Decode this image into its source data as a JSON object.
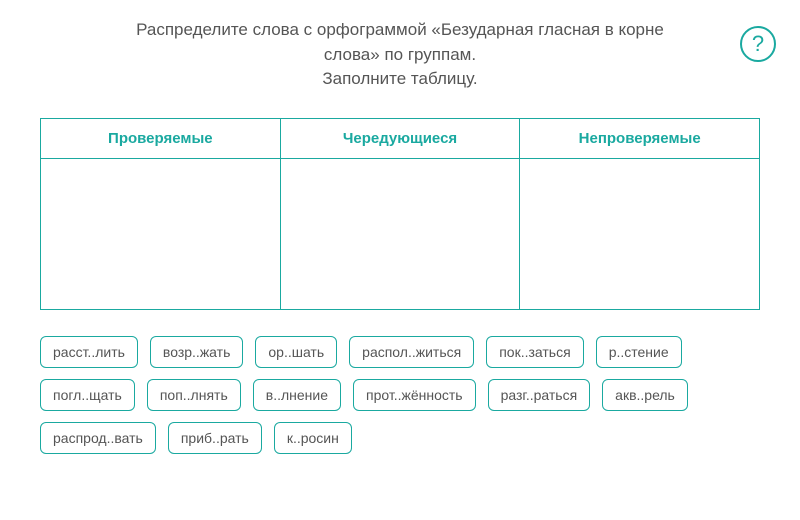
{
  "instruction_line1": "Распределите слова с орфограммой «Безударная гласная в корне",
  "instruction_line2": "слова» по группам.",
  "instruction_line3": "Заполните таблицу.",
  "help_symbol": "?",
  "columns": {
    "c0": "Проверяемые",
    "c1": "Чередующиеся",
    "c2": "Непроверяемые"
  },
  "chips": {
    "w0": "расст..лить",
    "w1": "возр..жать",
    "w2": "ор..шать",
    "w3": "распол..житься",
    "w4": "пок..заться",
    "w5": "р..стение",
    "w6": "погл..щать",
    "w7": "поп..лнять",
    "w8": "в..лнение",
    "w9": "прот..жённость",
    "w10": "разг..раться",
    "w11": "акв..рель",
    "w12": "распрод..вать",
    "w13": "приб..рать",
    "w14": "к..росин"
  },
  "colors": {
    "accent": "#1aa9a0",
    "text": "#555555",
    "background": "#ffffff"
  }
}
